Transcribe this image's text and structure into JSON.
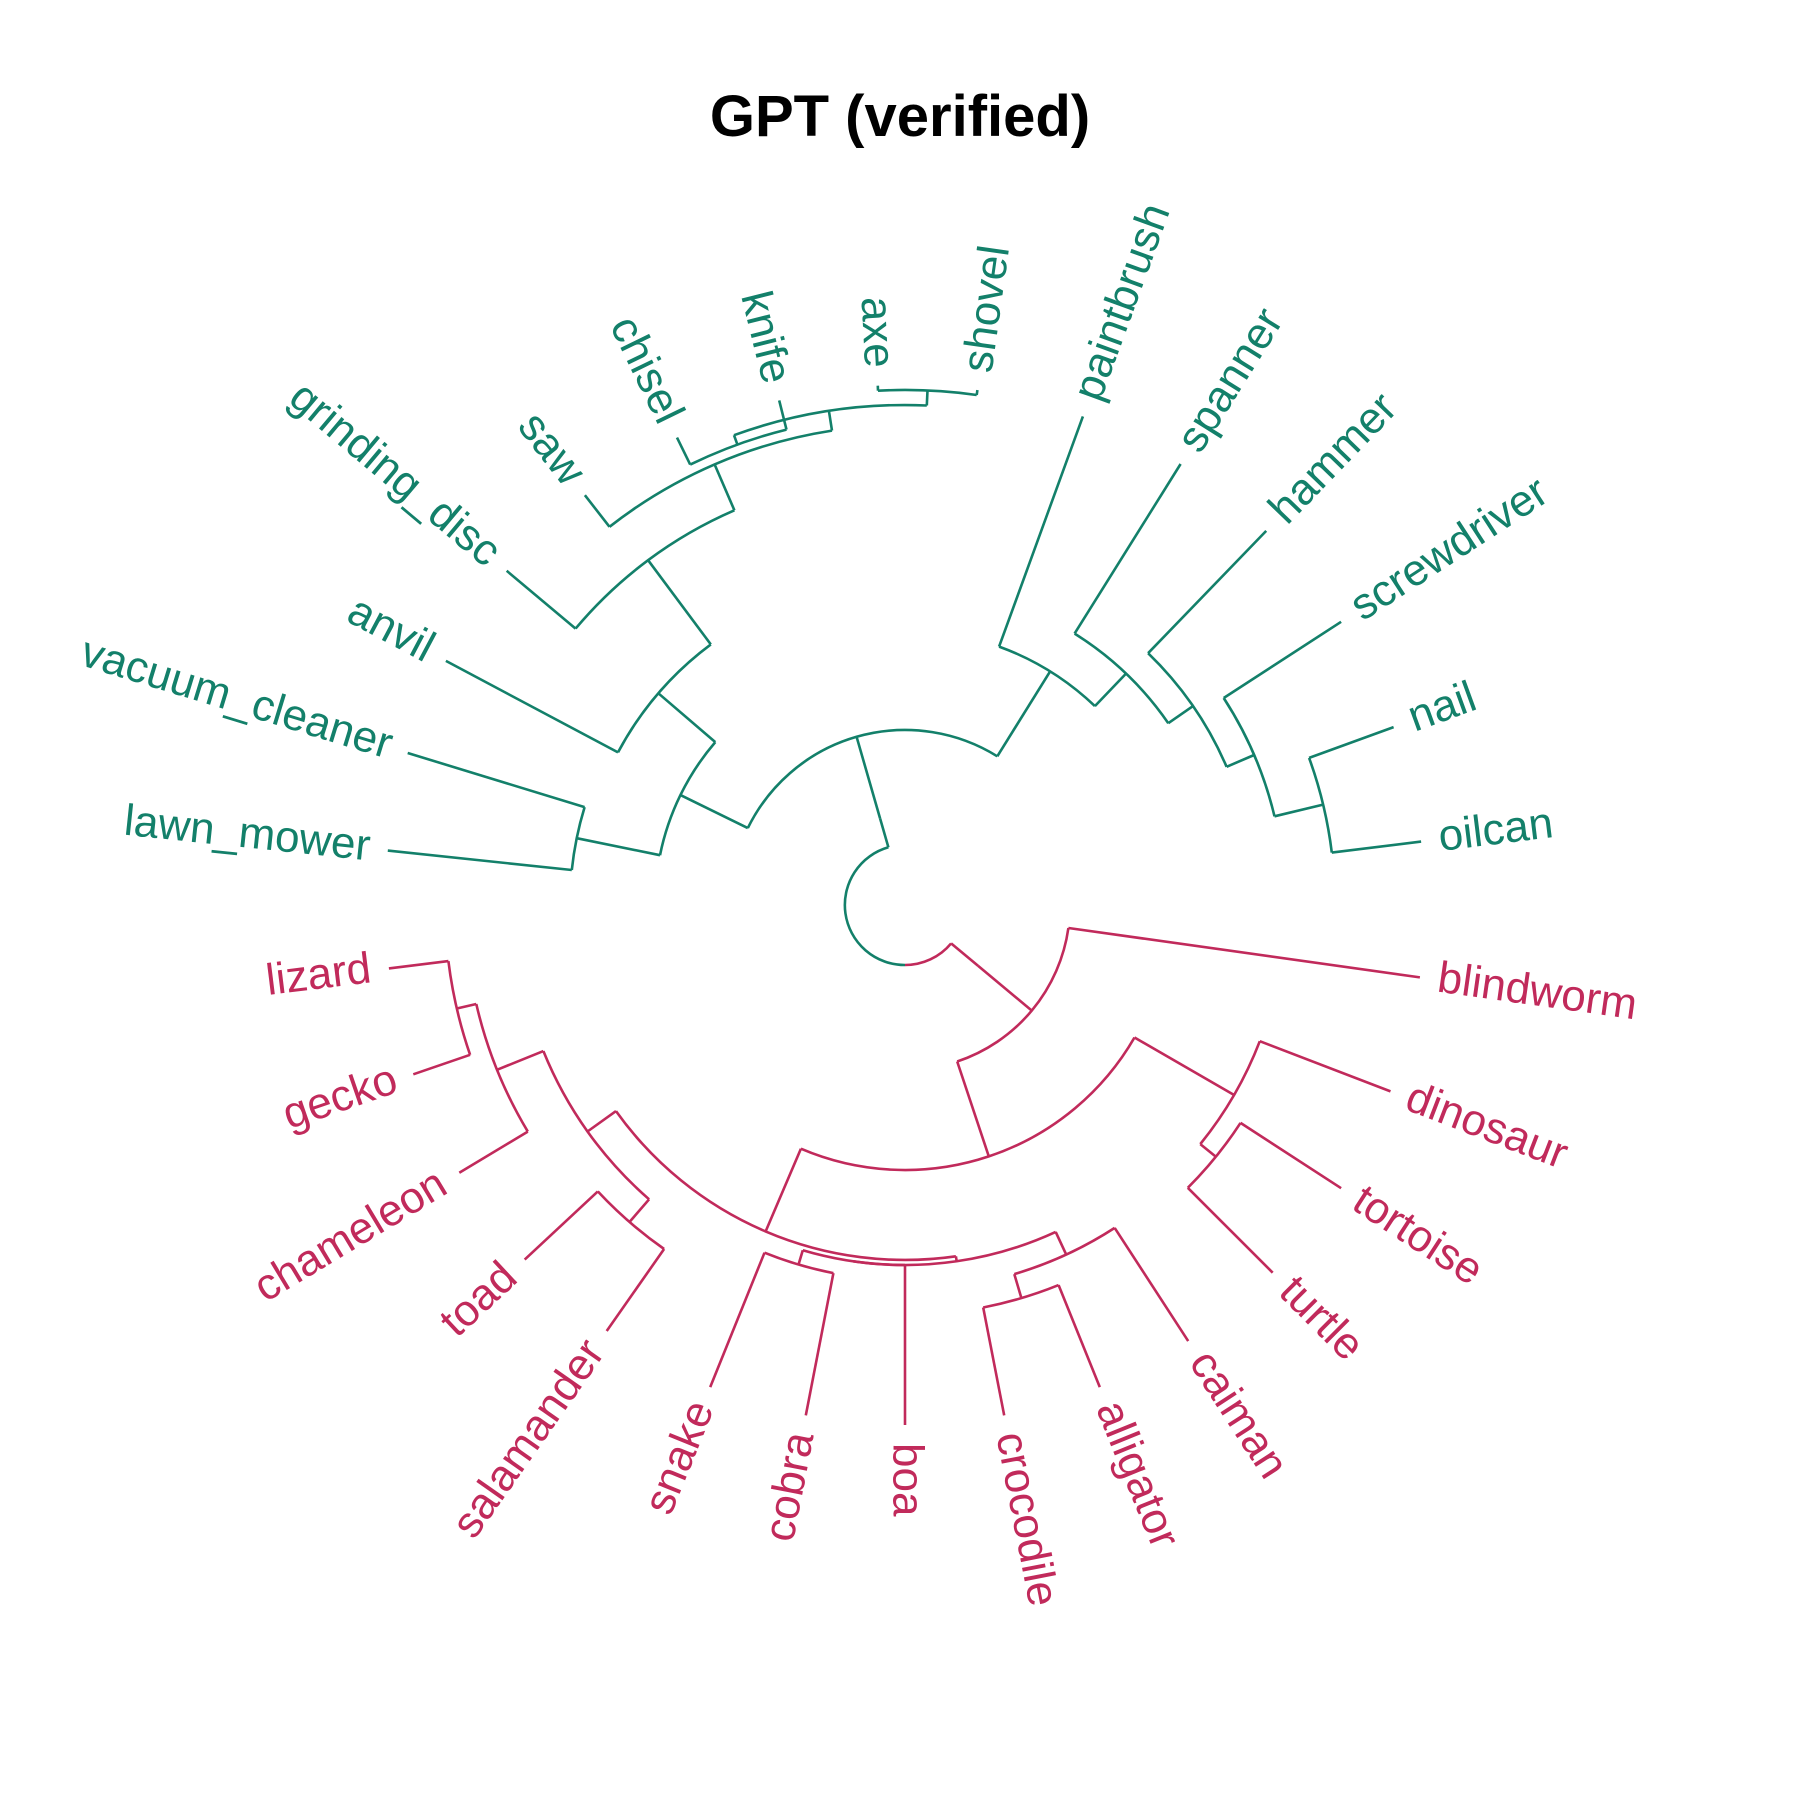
{
  "title": "GPT (verified)",
  "colors": {
    "tools": "#13806A",
    "animals": "#C12A5B"
  },
  "tools": {
    "leaves": [
      {
        "label": "oilcan",
        "angle": 7
      },
      {
        "label": "nail",
        "angle": 20
      },
      {
        "label": "screwdriver",
        "angle": 33
      },
      {
        "label": "hammer",
        "angle": 46
      },
      {
        "label": "spanner",
        "angle": 58
      },
      {
        "label": "paintbrush",
        "angle": 70
      },
      {
        "label": "shovel",
        "angle": 82
      },
      {
        "label": "axe",
        "angle": 93
      },
      {
        "label": "knife",
        "angle": 104
      },
      {
        "label": "chisel",
        "angle": 116
      },
      {
        "label": "saw",
        "angle": 128
      },
      {
        "label": "grinding_disc",
        "angle": 140
      },
      {
        "label": "anvil",
        "angle": 152
      },
      {
        "label": "vacuum_cleaner",
        "angle": 163
      },
      {
        "label": "lawn_mower",
        "angle": 174
      }
    ]
  },
  "animals": {
    "leaves": [
      {
        "label": "lizard",
        "angle": 187
      },
      {
        "label": "gecko",
        "angle": 199
      },
      {
        "label": "chameleon",
        "angle": 211
      },
      {
        "label": "toad",
        "angle": 223
      },
      {
        "label": "salamander",
        "angle": 235
      },
      {
        "label": "snake",
        "angle": 248
      },
      {
        "label": "cobra",
        "angle": 259
      },
      {
        "label": "boa",
        "angle": 270
      },
      {
        "label": "crocodile",
        "angle": 281
      },
      {
        "label": "alligator",
        "angle": 292
      },
      {
        "label": "caiman",
        "angle": 303
      },
      {
        "label": "turtle",
        "angle": 315
      },
      {
        "label": "tortoise",
        "angle": 327
      },
      {
        "label": "dinosaur",
        "angle": 339
      },
      {
        "label": "blindworm",
        "angle": 352
      }
    ]
  }
}
